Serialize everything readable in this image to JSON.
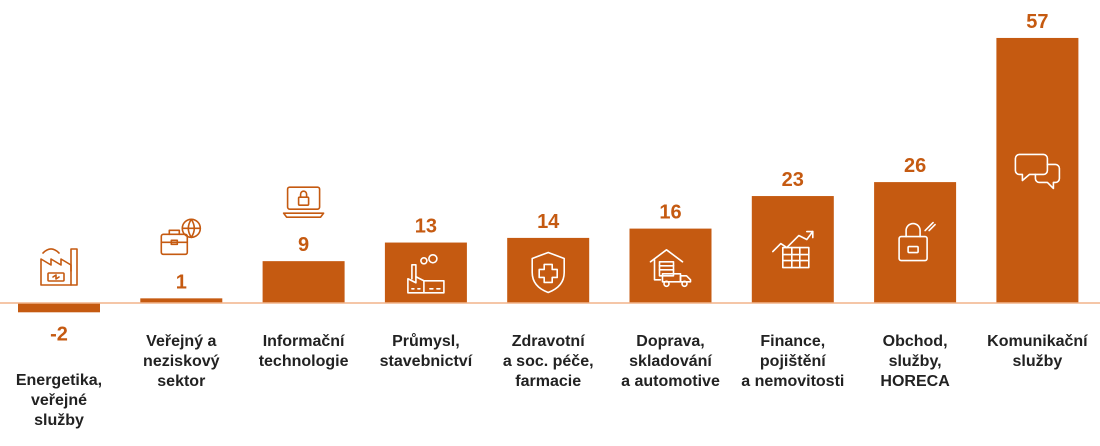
{
  "colors": {
    "bar": "#C55A11",
    "baseline": "#F2B48A",
    "text": "#222222",
    "icon_on_bar": "#FFFFFF"
  },
  "chart_data": {
    "type": "bar",
    "title": "",
    "xlabel": "",
    "ylabel": "",
    "grid": false,
    "ylim": [
      -2,
      57
    ],
    "categories": [
      "Energetika, veřejné služby",
      "Veřejný a neziskový sektor",
      "Informační technologie",
      "Průmysl, stavebnictví",
      "Zdravotní a soc. péče, farmacie",
      "Doprava, skladování a automotive",
      "Finance, pojištění a nemovitosti",
      "Obchod, služby, HORECA",
      "Komunikační služby"
    ],
    "category_lines": [
      [
        "Energetika,",
        "veřejné",
        "služby"
      ],
      [
        "Veřejný a",
        "neziskový",
        "sektor"
      ],
      [
        "Informační",
        "technologie"
      ],
      [
        "Průmysl,",
        "stavebnictví"
      ],
      [
        "Zdravotní",
        "a soc. péče,",
        "farmacie"
      ],
      [
        "Doprava,",
        "skladování",
        "a automotive"
      ],
      [
        "Finance,",
        "pojištění",
        "a nemovitosti"
      ],
      [
        "Obchod,",
        "služby,",
        "HORECA"
      ],
      [
        "Komunikační",
        "služby"
      ]
    ],
    "values": [
      -2,
      1,
      9,
      13,
      14,
      16,
      23,
      26,
      57
    ],
    "value_labels": [
      "-2",
      "1",
      "9",
      "13",
      "14",
      "16",
      "23",
      "26",
      "57"
    ],
    "icons": [
      "factory-battery-icon",
      "briefcase-globe-icon",
      "laptop-lock-icon",
      "factory-icon",
      "medical-shield-icon",
      "warehouse-truck-icon",
      "chart-table-icon",
      "shopping-bag-icon",
      "chat-bubbles-icon"
    ]
  }
}
